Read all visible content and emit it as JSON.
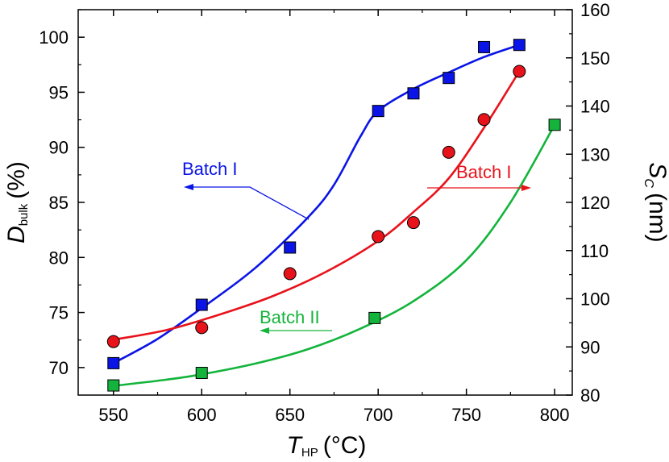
{
  "chart_data": {
    "type": "scatter",
    "x": {
      "label_main": "T",
      "label_sub": "HP",
      "label_unit": "(°C)",
      "lim": [
        530,
        810
      ],
      "ticks": [
        550,
        600,
        650,
        700,
        750,
        800
      ]
    },
    "y_left": {
      "label_main": "D",
      "label_sub": "bulk",
      "label_unit": "(%)",
      "lim": [
        67.5,
        102.5
      ],
      "ticks": [
        70,
        75,
        80,
        85,
        90,
        95,
        100
      ]
    },
    "y_right": {
      "label_main": "S",
      "label_sub": "C",
      "label_unit": "(nm)",
      "lim": [
        80,
        160
      ],
      "ticks": [
        80,
        90,
        100,
        110,
        120,
        130,
        140,
        150,
        160
      ]
    },
    "series": [
      {
        "name": "Batch I",
        "axis": "left",
        "marker": "square",
        "color": "#0a14e6",
        "points": [
          [
            550,
            70.4
          ],
          [
            600,
            75.7
          ],
          [
            650,
            80.9
          ],
          [
            700,
            93.3
          ],
          [
            720,
            94.9
          ],
          [
            740,
            96.3
          ],
          [
            760,
            99.1
          ],
          [
            780,
            99.3
          ]
        ],
        "fit": [
          [
            550,
            70.4
          ],
          [
            575,
            72.6
          ],
          [
            600,
            75.4
          ],
          [
            630,
            79.0
          ],
          [
            660,
            83.6
          ],
          [
            675,
            86.6
          ],
          [
            690,
            91.0
          ],
          [
            700,
            93.3
          ],
          [
            720,
            95.3
          ],
          [
            740,
            96.8
          ],
          [
            760,
            98.2
          ],
          [
            780,
            99.3
          ]
        ]
      },
      {
        "name": "Batch I",
        "axis": "right",
        "marker": "circle",
        "color": "#e8121a",
        "points": [
          [
            550,
            91.1
          ],
          [
            600,
            94.0
          ],
          [
            650,
            105.2
          ],
          [
            700,
            112.9
          ],
          [
            720,
            115.8
          ],
          [
            740,
            130.4
          ],
          [
            760,
            137.2
          ],
          [
            780,
            147.2
          ]
        ],
        "fit": [
          [
            550,
            91.5
          ],
          [
            580,
            93.5
          ],
          [
            610,
            96.7
          ],
          [
            640,
            100.5
          ],
          [
            670,
            105.5
          ],
          [
            700,
            112.0
          ],
          [
            720,
            118.0
          ],
          [
            740,
            125.0
          ],
          [
            760,
            135.5
          ],
          [
            780,
            147.2
          ]
        ]
      },
      {
        "name": "Batch II",
        "axis": "right",
        "marker": "square",
        "color": "#14b43c",
        "points": [
          [
            550,
            82.0
          ],
          [
            600,
            84.6
          ],
          [
            698,
            96.0
          ],
          [
            800,
            136.1
          ]
        ],
        "fit": [
          [
            550,
            81.9
          ],
          [
            580,
            83.2
          ],
          [
            600,
            84.3
          ],
          [
            630,
            86.5
          ],
          [
            660,
            89.5
          ],
          [
            690,
            93.8
          ],
          [
            720,
            99.5
          ],
          [
            750,
            108.0
          ],
          [
            775,
            120.0
          ],
          [
            800,
            136.1
          ]
        ]
      }
    ],
    "annotations": [
      {
        "text": "Batch I",
        "color": "#0a14e6",
        "points_to": "left"
      },
      {
        "text": "Batch I",
        "color": "#e8121a",
        "points_to": "right"
      },
      {
        "text": "Batch II",
        "color": "#14b43c",
        "points_to": "right"
      }
    ]
  }
}
